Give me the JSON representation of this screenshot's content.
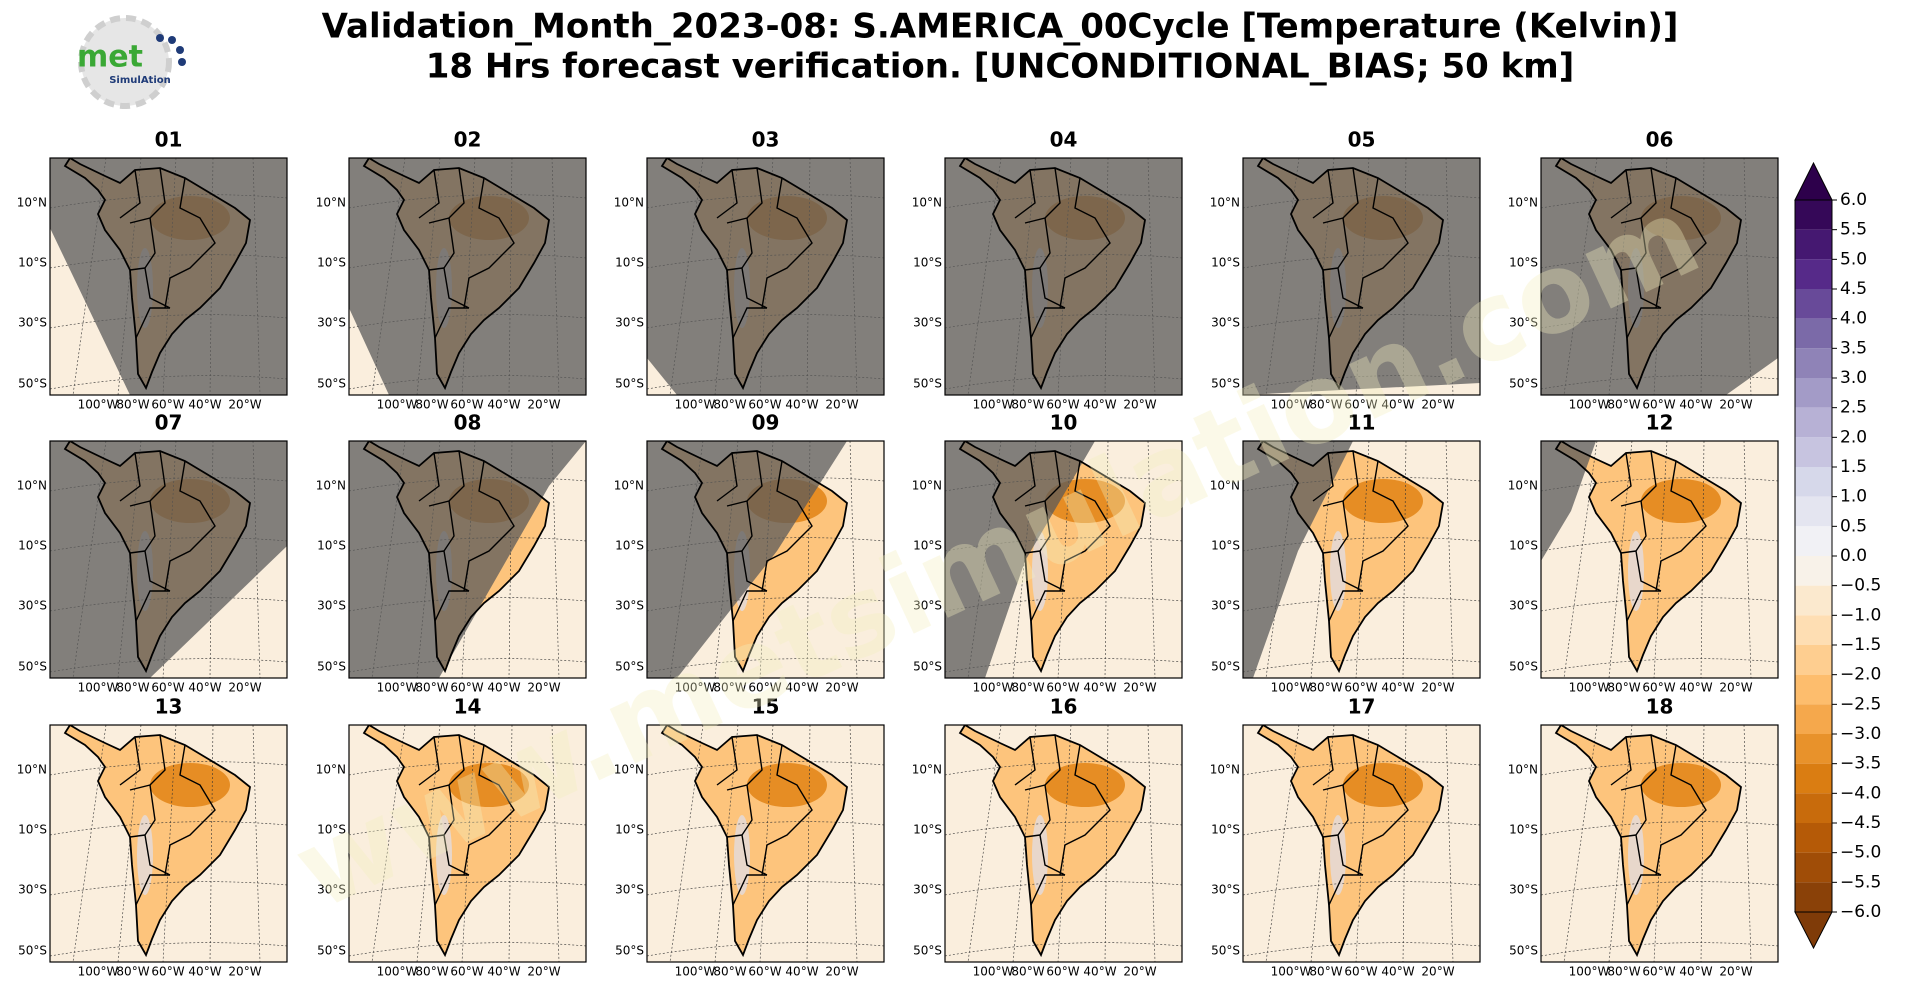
{
  "header": {
    "title_line1": "Validation_Month_2023-08: S.AMERICA_00Cycle [Temperature (Kelvin)]",
    "title_line2": "18 Hrs forecast verification. [UNCONDITIONAL_BIAS; 50 km]",
    "logo_main": "met",
    "logo_sub": "SimulAtion",
    "watermark": "www.metsimulation.com"
  },
  "panels": {
    "titles": [
      "01",
      "02",
      "03",
      "04",
      "05",
      "06",
      "07",
      "08",
      "09",
      "10",
      "11",
      "12",
      "13",
      "14",
      "15",
      "16",
      "17",
      "18"
    ],
    "lat_labels": [
      "10°N",
      "10°S",
      "30°S",
      "50°S"
    ],
    "lon_labels": [
      "100°W",
      "80°W",
      "60°W",
      "40°W",
      "20°W"
    ]
  },
  "colorbar": {
    "lim": [
      -6,
      6
    ],
    "ticks": [
      {
        "value": 6,
        "label": "6.0"
      },
      {
        "value": 5.5,
        "label": "5.5"
      },
      {
        "value": 5,
        "label": "5.0"
      },
      {
        "value": 4.5,
        "label": "4.5"
      },
      {
        "value": 4,
        "label": "4.0"
      },
      {
        "value": 3.5,
        "label": "3.5"
      },
      {
        "value": 3,
        "label": "3.0"
      },
      {
        "value": 2.5,
        "label": "2.5"
      },
      {
        "value": 2,
        "label": "2.0"
      },
      {
        "value": 1.5,
        "label": "1.5"
      },
      {
        "value": 1,
        "label": "1.0"
      },
      {
        "value": 0.5,
        "label": "0.5"
      },
      {
        "value": 0,
        "label": "0.0"
      },
      {
        "value": -0.5,
        "label": "−0.5"
      },
      {
        "value": -1,
        "label": "−1.0"
      },
      {
        "value": -1.5,
        "label": "−1.5"
      },
      {
        "value": -2,
        "label": "−2.0"
      },
      {
        "value": -2.5,
        "label": "−2.5"
      },
      {
        "value": -3,
        "label": "−3.0"
      },
      {
        "value": -3.5,
        "label": "−3.5"
      },
      {
        "value": -4,
        "label": "−4.0"
      },
      {
        "value": -4.5,
        "label": "−4.5"
      },
      {
        "value": -5,
        "label": "−5.0"
      },
      {
        "value": -5.5,
        "label": "−5.5"
      },
      {
        "value": -6,
        "label": "−6.0"
      }
    ],
    "colors_low_to_high": [
      "#7f3b08",
      "#b35806",
      "#e08214",
      "#fdb863",
      "#fee0b6",
      "#f7f7f7",
      "#d8daeb",
      "#b2abd2",
      "#8073ac",
      "#542788",
      "#2d004b"
    ]
  }
}
